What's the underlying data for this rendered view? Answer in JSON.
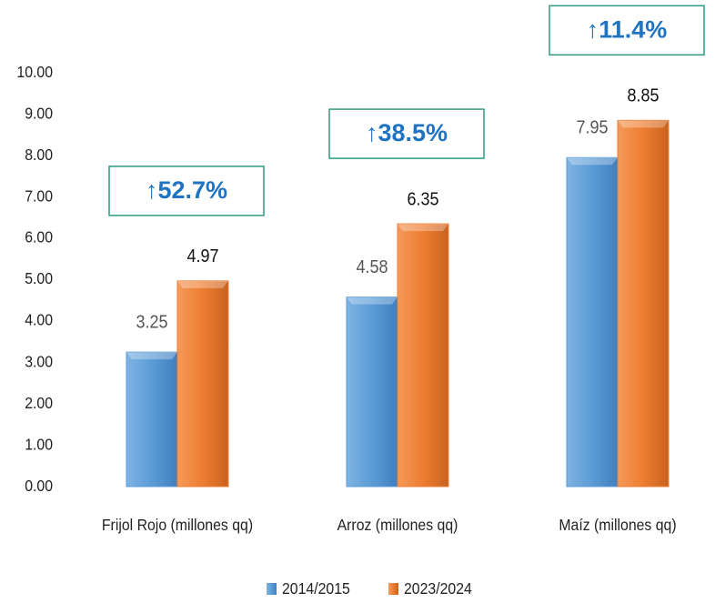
{
  "chart_data": {
    "type": "bar",
    "categories": [
      "Frijol Rojo (millones qq)",
      "Arroz (millones qq)",
      "Maíz (millones qq)"
    ],
    "series": [
      {
        "name": "2014/2015",
        "color": "#5b9bd5",
        "values": [
          3.25,
          4.58,
          7.95
        ]
      },
      {
        "name": "2023/2024",
        "color": "#ed7d31",
        "values": [
          4.97,
          6.35,
          8.85
        ]
      }
    ],
    "annotations": [
      "↑52.7%",
      "↑38.5%",
      "↑11.4%"
    ],
    "ylim": [
      0,
      10
    ],
    "yticks": [
      {
        "value": 0,
        "label": "0.00"
      },
      {
        "value": 1,
        "label": "1.00"
      },
      {
        "value": 2,
        "label": "2.00"
      },
      {
        "value": 3,
        "label": "3.00"
      },
      {
        "value": 4,
        "label": "4.00"
      },
      {
        "value": 5,
        "label": "5.00"
      },
      {
        "value": 6,
        "label": "6.00"
      },
      {
        "value": 7,
        "label": "7.00"
      },
      {
        "value": 8,
        "label": "8.00"
      },
      {
        "value": 9,
        "label": "9.00"
      },
      {
        "value": 10,
        "label": "10.00"
      }
    ],
    "grid": false,
    "legend": "bottom"
  }
}
